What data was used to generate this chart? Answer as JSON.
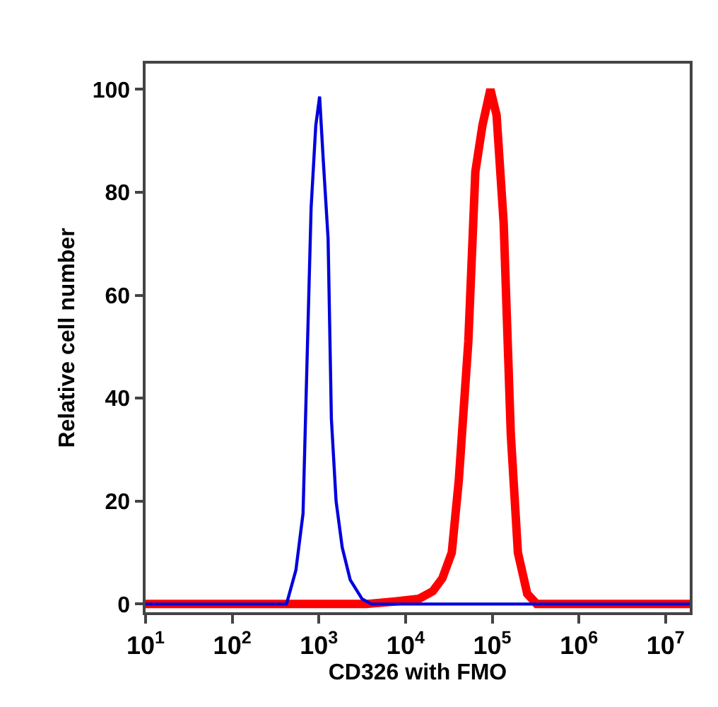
{
  "chart_data": {
    "type": "line",
    "xlabel": "CD326 with FMO",
    "ylabel": "Relative cell number",
    "log": "x",
    "xlim": [
      10,
      19000000
    ],
    "ylim": [
      -1.6,
      105
    ],
    "xticks": [
      {
        "value": 10,
        "label": "10$^{1}$"
      },
      {
        "value": 100,
        "label": "10$^{2}$"
      },
      {
        "value": 1000,
        "label": "10$^{3}$"
      },
      {
        "value": 10000,
        "label": "10$^{4}$"
      },
      {
        "value": 100000,
        "label": "10$^{5}$"
      },
      {
        "value": 1000000,
        "label": "10$^{6}$"
      },
      {
        "value": 10000000,
        "label": "10$^{7}$"
      }
    ],
    "yticks": [
      0,
      20,
      40,
      60,
      80,
      100
    ],
    "series": [
      {
        "color": "#ff0000",
        "x": [
          10,
          3500,
          7568,
          14190,
          20650,
          26550,
          34120,
          41110,
          52970,
          63830,
          77090,
          95280,
          112200,
          135500,
          163700,
          197700,
          253500,
          325800,
          19000000
        ],
        "values": [
          0,
          0,
          0.5,
          1,
          2.5,
          5,
          10,
          24,
          51,
          84,
          93,
          100,
          95,
          74,
          33,
          10,
          2,
          0,
          0
        ]
      },
      {
        "color": "#0000dd",
        "x": [
          10,
          423,
          543,
          656,
          716,
          813,
          920,
          1019,
          1125,
          1276,
          1393,
          1578,
          1858,
          2296,
          3148,
          4036,
          19000000
        ],
        "values": [
          0,
          0,
          6.6,
          17.6,
          42,
          77,
          93,
          98.6,
          86,
          71,
          36,
          20,
          11,
          4.7,
          1,
          0,
          0
        ]
      }
    ]
  }
}
